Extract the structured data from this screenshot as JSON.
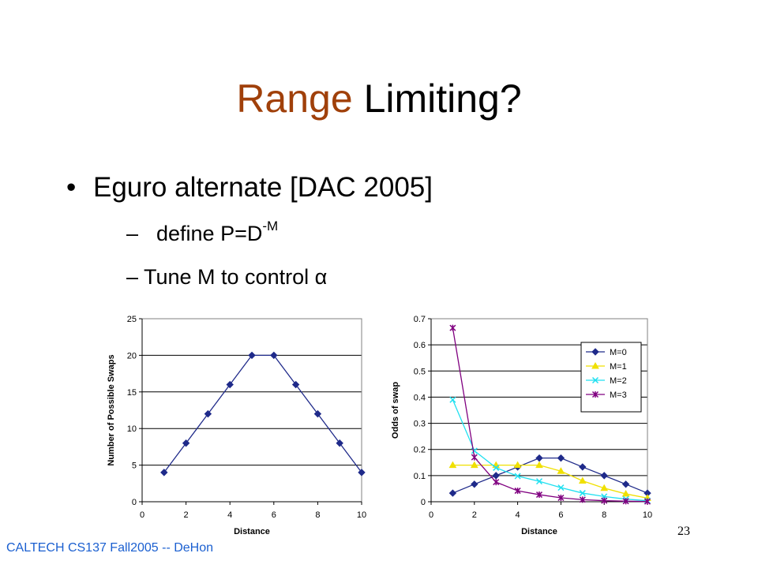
{
  "slide": {
    "title_accent": "Range",
    "title_rest": " Limiting?",
    "bullet_mark": "•",
    "bullet": "Eguro alternate [DAC 2005]",
    "sub1_dash": "–",
    "sub1_text": "define P=D",
    "sub1_sup": "-M",
    "sub2_dash": "–",
    "sub2_text": "Tune M to control α",
    "footer": "CALTECH CS137 Fall2005 -- DeHon",
    "page_number": "23"
  },
  "chart_data": [
    {
      "type": "line",
      "x": [
        1,
        2,
        3,
        4,
        5,
        6,
        7,
        8,
        9,
        10
      ],
      "series": [
        {
          "values": [
            4,
            8,
            12,
            16,
            20,
            20,
            16,
            12,
            8,
            4
          ],
          "color": "#1f2a8a",
          "marker": "diamond"
        }
      ],
      "xlabel": "Distance",
      "ylabel": "Number of Possible Swaps",
      "xlim": [
        0,
        10
      ],
      "ylim": [
        0,
        25
      ],
      "xticks": [
        "0",
        "2",
        "4",
        "6",
        "8",
        "10"
      ],
      "yticks": [
        "0",
        "5",
        "10",
        "15",
        "20",
        "25"
      ],
      "grid": "horizontal"
    },
    {
      "type": "line",
      "x": [
        1,
        2,
        3,
        4,
        5,
        6,
        7,
        8,
        9,
        10
      ],
      "series": [
        {
          "name": "M=0",
          "values": [
            0.033,
            0.067,
            0.1,
            0.133,
            0.167,
            0.167,
            0.133,
            0.1,
            0.067,
            0.033
          ],
          "color": "#1f2a8a",
          "marker": "diamond"
        },
        {
          "name": "M=1",
          "values": [
            0.14,
            0.14,
            0.14,
            0.14,
            0.14,
            0.117,
            0.08,
            0.052,
            0.03,
            0.014
          ],
          "color": "#f0e000",
          "marker": "triangle"
        },
        {
          "name": "M=2",
          "values": [
            0.39,
            0.195,
            0.13,
            0.098,
            0.078,
            0.054,
            0.033,
            0.02,
            0.01,
            0.004
          ],
          "color": "#20e0f0",
          "marker": "x"
        },
        {
          "name": "M=3",
          "values": [
            0.665,
            0.17,
            0.075,
            0.042,
            0.027,
            0.015,
            0.008,
            0.004,
            0.002,
            0.001
          ],
          "color": "#800080",
          "marker": "star"
        }
      ],
      "xlabel": "Distance",
      "ylabel": "Odds of swap",
      "xlim": [
        0,
        10
      ],
      "ylim": [
        0,
        0.7
      ],
      "xticks": [
        "0",
        "2",
        "4",
        "6",
        "8",
        "10"
      ],
      "yticks": [
        "0",
        "0.1",
        "0.2",
        "0.3",
        "0.4",
        "0.5",
        "0.6",
        "0.7"
      ],
      "grid": "horizontal",
      "legend": "right"
    }
  ]
}
